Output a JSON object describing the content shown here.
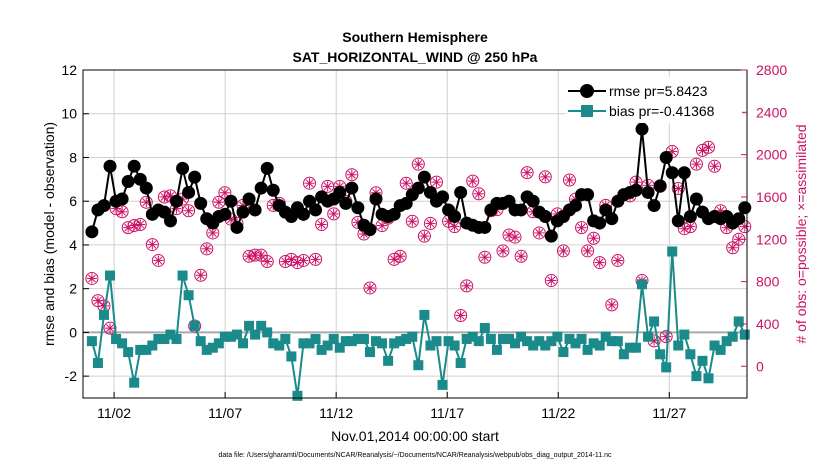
{
  "chart_data": {
    "type": "line",
    "title": "Southern Hemisphere",
    "subtitle": "SAT_HORIZONTAL_WIND @ 250 hPa",
    "xlabel": "Nov.01,2014 00:00:00 start",
    "ylabel": "rmse and bias (model - observation)",
    "y2label": "# of obs: o=possible; ×=assimilated",
    "footnote": "data file: /Users/gharamti/Documents/NCAR/Reanalysis/~/Documents/NCAR/Reanalysis/webpub/obs_diag_output_2014-11.nc",
    "xlim": [
      0.6,
      30.5
    ],
    "ylim": [
      -3,
      12
    ],
    "y2lim": [
      -300,
      2800
    ],
    "xticks": [
      {
        "value": 2,
        "label": "11/02"
      },
      {
        "value": 7,
        "label": "11/07"
      },
      {
        "value": 12,
        "label": "11/12"
      },
      {
        "value": 17,
        "label": "11/17"
      },
      {
        "value": 22,
        "label": "11/22"
      },
      {
        "value": 27,
        "label": "11/27"
      }
    ],
    "yticks": [
      "12",
      "10",
      "8",
      "6",
      "4",
      "2",
      "0",
      "-2"
    ],
    "y2ticks": [
      "2800",
      "2400",
      "2000",
      "1600",
      "1200",
      "800",
      "400",
      "0"
    ],
    "grid": true,
    "legend_position": "top-right",
    "zero_line": 0,
    "colors": {
      "rmse": "#000000",
      "bias": "#1a8a8a",
      "obs": "#cc1166",
      "zero": "#a8a8a8",
      "grid": "#d0d0d0"
    },
    "series": [
      {
        "name": "rmse pr=5.8423",
        "axis": "left",
        "values": [
          4.6,
          5.6,
          5.8,
          7.6,
          6.0,
          6.1,
          6.9,
          7.6,
          7.0,
          6.6,
          5.4,
          5.6,
          5.5,
          5.1,
          6.0,
          7.5,
          6.4,
          7.1,
          5.9,
          5.2,
          5.0,
          5.3,
          5.4,
          6.0,
          4.8,
          5.5,
          6.1,
          5.6,
          6.6,
          7.5,
          6.5,
          5.8,
          5.5,
          5.3,
          5.7,
          5.4,
          6.0,
          5.6,
          6.2,
          6.0,
          6.1,
          6.4,
          5.9,
          6.6,
          5.7,
          4.9,
          4.7,
          6.1,
          5.4,
          5.3,
          5.4,
          5.8,
          5.9,
          6.3,
          6.6,
          7.1,
          6.4,
          6.0,
          6.2,
          5.6,
          5.3,
          6.4,
          5.0,
          4.9,
          4.8,
          4.8,
          5.6,
          5.9,
          5.9,
          6.0,
          5.6,
          5.6,
          6.2,
          6.0,
          5.5,
          5.3,
          4.4,
          5.1,
          5.3,
          5.6,
          5.8,
          6.3,
          6.3,
          5.1,
          5.0,
          5.6,
          5.2,
          6.0,
          6.3,
          6.4,
          6.5,
          9.3,
          6.4,
          5.8,
          6.7,
          8.0,
          7.3,
          5.1,
          7.3,
          5.3,
          6.1,
          5.5,
          5.2,
          5.3,
          5.2,
          5.3,
          5.0,
          5.2,
          5.7
        ]
      },
      {
        "name": "bias pr=-0.41368",
        "axis": "left",
        "values": [
          -0.4,
          -1.4,
          0.8,
          2.6,
          -0.3,
          -0.5,
          -0.9,
          -2.3,
          -0.8,
          -0.8,
          -0.6,
          -0.3,
          -0.3,
          -0.1,
          -0.3,
          2.6,
          1.7,
          0.3,
          -0.4,
          -0.8,
          -0.7,
          -0.5,
          -0.2,
          -0.2,
          -0.1,
          -0.5,
          0.3,
          -0.1,
          0.3,
          0.0,
          -0.5,
          -0.6,
          -0.3,
          -1.1,
          -2.9,
          -0.5,
          -0.5,
          -0.3,
          -0.8,
          -0.6,
          -0.3,
          -0.7,
          -0.4,
          -0.4,
          -0.3,
          -0.3,
          -0.9,
          -0.4,
          -0.5,
          -1.3,
          -0.5,
          -0.4,
          -0.3,
          -0.2,
          -1.5,
          0.8,
          -0.6,
          -0.4,
          -2.4,
          -0.4,
          -0.6,
          -1.4,
          -0.3,
          -0.2,
          -0.4,
          0.2,
          -0.3,
          -0.8,
          -0.3,
          -0.3,
          -0.5,
          -0.2,
          -0.4,
          -0.6,
          -0.4,
          -0.6,
          -0.4,
          -0.2,
          -0.9,
          -0.3,
          -0.5,
          -0.3,
          -0.8,
          -0.5,
          -0.6,
          -0.2,
          -0.4,
          -0.4,
          -1.0,
          -0.7,
          -0.7,
          2.2,
          -0.2,
          0.5,
          -1.0,
          -1.6,
          3.7,
          -0.6,
          -0.1,
          -1.0,
          -2.0,
          -1.3,
          -2.1,
          -0.6,
          -0.8,
          -0.4,
          -0.2,
          0.5,
          -0.1
        ]
      },
      {
        "name": "possible",
        "axis": "right",
        "values": [
          830,
          620,
          570,
          360,
          1490,
          1460,
          1310,
          1330,
          1340,
          1550,
          1150,
          1000,
          1600,
          1610,
          1490,
          1580,
          1470,
          380,
          860,
          1110,
          1260,
          1550,
          1640,
          1390,
          1350,
          1520,
          1040,
          1050,
          1050,
          990,
          1520,
          1540,
          990,
          1010,
          980,
          1000,
          1730,
          1010,
          1340,
          1700,
          1440,
          1700,
          1560,
          1810,
          1360,
          1250,
          740,
          1640,
          1330,
          1400,
          1010,
          1040,
          1730,
          1370,
          1910,
          1230,
          1350,
          1740,
          1600,
          1370,
          1320,
          480,
          760,
          1750,
          1630,
          1030,
          1470,
          1480,
          1090,
          1240,
          1220,
          1040,
          1830,
          1460,
          1260,
          1790,
          810,
          1440,
          1090,
          1760,
          1580,
          1310,
          1090,
          1210,
          980,
          1520,
          580,
          1000,
          1620,
          1610,
          1740,
          810,
          1710,
          240,
          1700,
          280,
          2030,
          1680,
          1300,
          1320,
          1910,
          2040,
          2070,
          1890,
          1470,
          1310,
          1120,
          1200,
          1320
        ]
      }
    ]
  }
}
